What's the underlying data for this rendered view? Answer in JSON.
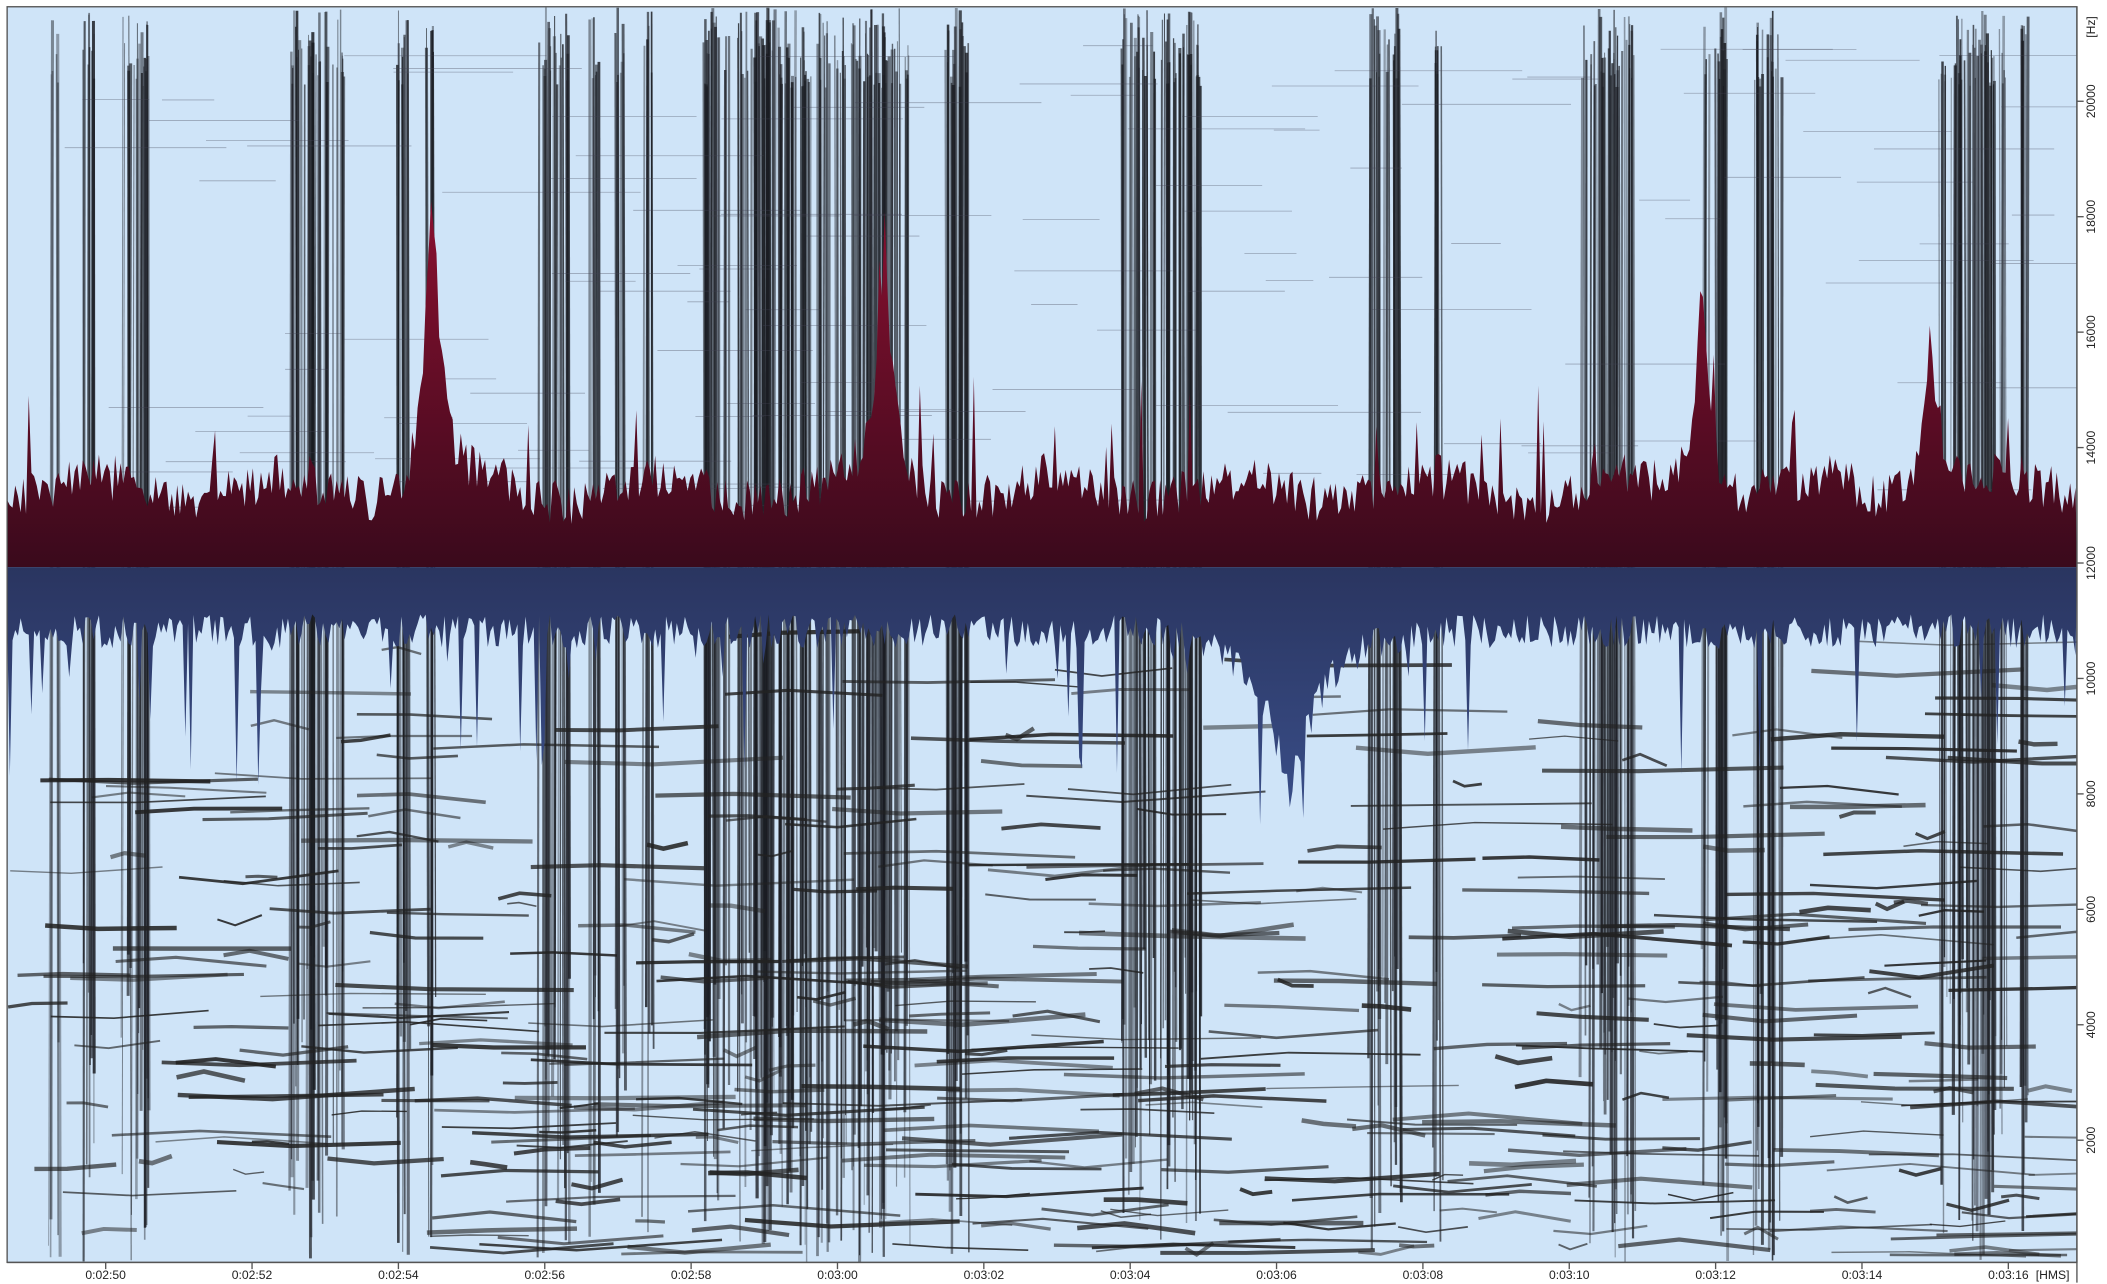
{
  "y_axis": {
    "unit": "[Hz]",
    "ticks": [
      "20000",
      "18000",
      "16000",
      "14000",
      "12000",
      "10000",
      "8000",
      "6000",
      "4000",
      "2000"
    ]
  },
  "x_axis": {
    "unit": "[HMS]",
    "ticks": [
      "0:02:50",
      "0:02:52",
      "0:02:54",
      "0:02:56",
      "0:02:58",
      "0:03:00",
      "0:03:02",
      "0:03:04",
      "0:03:06",
      "0:03:08",
      "0:03:10",
      "0:03:12",
      "0:03:14",
      "0:03:16"
    ]
  }
}
